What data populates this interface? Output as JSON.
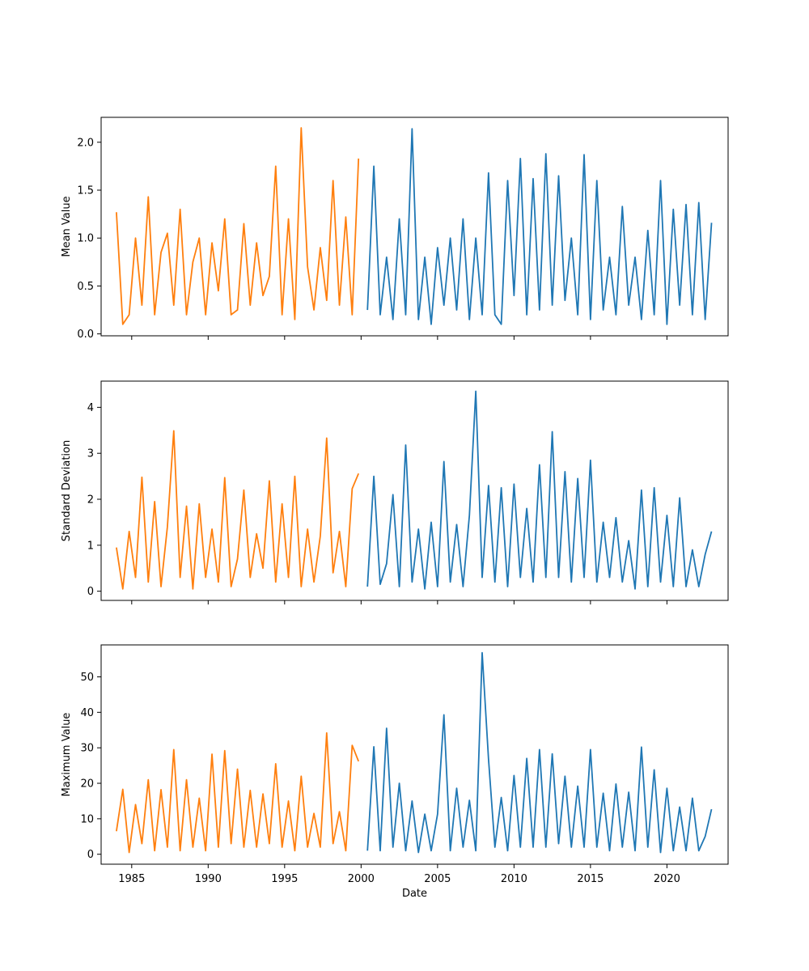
{
  "chart_data": {
    "type": "line",
    "shared_x": {
      "label": "Date",
      "ticks": [
        "1985",
        "1990",
        "1995",
        "2000",
        "2005",
        "2010",
        "2015",
        "2020"
      ],
      "range": [
        "1983",
        "2024"
      ]
    },
    "colors": {
      "series_before_2000": "#ff7f0e",
      "series_from_2000": "#1f77b4"
    },
    "panels": [
      {
        "ylabel": "Mean Value",
        "ylim": [
          -0.02,
          2.26
        ],
        "yticks": [
          "0.0",
          "0.5",
          "1.0",
          "1.5",
          "2.0"
        ],
        "series": [
          {
            "x": [
              "1984-01",
              "1984-06",
              "1984-11",
              "1985-04",
              "1985-09",
              "1986-02",
              "1986-07",
              "1986-12",
              "1987-05",
              "1987-10",
              "1988-03",
              "1988-08",
              "1989-01",
              "1989-06",
              "1989-11",
              "1990-04",
              "1990-09",
              "1991-02",
              "1991-07",
              "1991-12",
              "1992-05",
              "1992-10",
              "1993-03",
              "1993-08",
              "1994-01",
              "1994-06",
              "1994-11",
              "1995-04",
              "1995-09",
              "1996-02",
              "1996-07",
              "1996-12",
              "1997-05",
              "1997-10",
              "1998-03",
              "1998-08",
              "1999-01",
              "1999-06",
              "1999-11"
            ],
            "y": [
              1.27,
              0.1,
              0.2,
              1.0,
              0.3,
              1.43,
              0.2,
              0.85,
              1.05,
              0.3,
              1.3,
              0.2,
              0.75,
              1.0,
              0.2,
              0.95,
              0.45,
              1.2,
              0.2,
              0.25,
              1.15,
              0.3,
              0.95,
              0.4,
              0.6,
              1.75,
              0.2,
              1.2,
              0.15,
              2.15,
              0.7,
              0.25,
              0.9,
              0.35,
              1.6,
              0.3,
              1.22,
              0.2,
              1.83
            ]
          },
          {
            "x": [
              "2000-06",
              "2000-11",
              "2001-04",
              "2001-09",
              "2002-02",
              "2002-07",
              "2002-12",
              "2003-05",
              "2003-10",
              "2004-03",
              "2004-08",
              "2005-01",
              "2005-06",
              "2005-11",
              "2006-04",
              "2006-09",
              "2007-02",
              "2007-07",
              "2007-12",
              "2008-05",
              "2008-10",
              "2009-03",
              "2009-08",
              "2010-01",
              "2010-06",
              "2010-11",
              "2011-04",
              "2011-09",
              "2012-02",
              "2012-07",
              "2012-12",
              "2013-05",
              "2013-10",
              "2014-03",
              "2014-08",
              "2015-01",
              "2015-06",
              "2015-11",
              "2016-04",
              "2016-09",
              "2017-02",
              "2017-07",
              "2017-12",
              "2018-05",
              "2018-10",
              "2019-03",
              "2019-08",
              "2020-01",
              "2020-06",
              "2020-11",
              "2021-04",
              "2021-09",
              "2022-02",
              "2022-07",
              "2022-12"
            ],
            "y": [
              0.25,
              1.75,
              0.2,
              0.8,
              0.15,
              1.2,
              0.2,
              2.14,
              0.15,
              0.8,
              0.1,
              0.9,
              0.3,
              1.0,
              0.25,
              1.2,
              0.15,
              1.0,
              0.2,
              1.68,
              0.2,
              0.1,
              1.6,
              0.4,
              1.83,
              0.2,
              1.62,
              0.25,
              1.88,
              0.3,
              1.65,
              0.35,
              1.0,
              0.2,
              1.87,
              0.15,
              1.6,
              0.25,
              0.8,
              0.2,
              1.33,
              0.3,
              0.8,
              0.15,
              1.08,
              0.2,
              1.6,
              0.1,
              1.3,
              0.3,
              1.35,
              0.2,
              1.37,
              0.15,
              1.16
            ]
          }
        ]
      },
      {
        "ylabel": "Standard Deviation",
        "ylim": [
          -0.2,
          4.57
        ],
        "yticks": [
          "0",
          "1",
          "2",
          "3",
          "4"
        ],
        "series": [
          {
            "x": [
              "1984-01",
              "1984-06",
              "1984-11",
              "1985-04",
              "1985-09",
              "1986-02",
              "1986-07",
              "1986-12",
              "1987-05",
              "1987-10",
              "1988-03",
              "1988-08",
              "1989-01",
              "1989-06",
              "1989-11",
              "1990-04",
              "1990-09",
              "1991-02",
              "1991-07",
              "1991-12",
              "1992-05",
              "1992-10",
              "1993-03",
              "1993-08",
              "1994-01",
              "1994-06",
              "1994-11",
              "1995-04",
              "1995-09",
              "1996-02",
              "1996-07",
              "1996-12",
              "1997-05",
              "1997-10",
              "1998-03",
              "1998-08",
              "1999-01",
              "1999-06",
              "1999-11"
            ],
            "y": [
              0.95,
              0.05,
              1.3,
              0.3,
              2.48,
              0.2,
              1.95,
              0.1,
              1.4,
              3.49,
              0.3,
              1.85,
              0.05,
              1.9,
              0.3,
              1.35,
              0.2,
              2.47,
              0.1,
              0.7,
              2.2,
              0.3,
              1.25,
              0.5,
              2.4,
              0.2,
              1.9,
              0.3,
              2.5,
              0.1,
              1.35,
              0.2,
              1.2,
              3.33,
              0.4,
              1.3,
              0.1,
              2.23,
              2.56
            ]
          },
          {
            "x": [
              "2000-06",
              "2000-11",
              "2001-04",
              "2001-09",
              "2002-02",
              "2002-07",
              "2002-12",
              "2003-05",
              "2003-10",
              "2004-03",
              "2004-08",
              "2005-01",
              "2005-06",
              "2005-11",
              "2006-04",
              "2006-09",
              "2007-02",
              "2007-07",
              "2007-12",
              "2008-05",
              "2008-10",
              "2009-03",
              "2009-08",
              "2010-01",
              "2010-06",
              "2010-11",
              "2011-04",
              "2011-09",
              "2012-02",
              "2012-07",
              "2012-12",
              "2013-05",
              "2013-10",
              "2014-03",
              "2014-08",
              "2015-01",
              "2015-06",
              "2015-11",
              "2016-04",
              "2016-09",
              "2017-02",
              "2017-07",
              "2017-12",
              "2018-05",
              "2018-10",
              "2019-03",
              "2019-08",
              "2020-01",
              "2020-06",
              "2020-11",
              "2021-04",
              "2021-09",
              "2022-02",
              "2022-07",
              "2022-12"
            ],
            "y": [
              0.1,
              2.5,
              0.15,
              0.6,
              2.1,
              0.1,
              3.18,
              0.2,
              1.35,
              0.05,
              1.5,
              0.1,
              2.82,
              0.2,
              1.45,
              0.1,
              1.65,
              4.35,
              0.3,
              2.3,
              0.2,
              2.25,
              0.1,
              2.33,
              0.3,
              1.8,
              0.2,
              2.75,
              0.3,
              3.47,
              0.3,
              2.6,
              0.2,
              2.45,
              0.3,
              2.85,
              0.2,
              1.5,
              0.3,
              1.6,
              0.2,
              1.1,
              0.05,
              2.2,
              0.1,
              2.25,
              0.2,
              1.65,
              0.1,
              2.03,
              0.1,
              0.9,
              0.1,
              0.8,
              1.3
            ]
          }
        ]
      },
      {
        "ylabel": "Maximum Value",
        "ylim": [
          -2.8,
          59.0
        ],
        "yticks": [
          "0",
          "10",
          "20",
          "30",
          "40",
          "50"
        ],
        "series": [
          {
            "x": [
              "1984-01",
              "1984-06",
              "1984-11",
              "1985-04",
              "1985-09",
              "1986-02",
              "1986-07",
              "1986-12",
              "1987-05",
              "1987-10",
              "1988-03",
              "1988-08",
              "1989-01",
              "1989-06",
              "1989-11",
              "1990-04",
              "1990-09",
              "1991-02",
              "1991-07",
              "1991-12",
              "1992-05",
              "1992-10",
              "1993-03",
              "1993-08",
              "1994-01",
              "1994-06",
              "1994-11",
              "1995-04",
              "1995-09",
              "1996-02",
              "1996-07",
              "1996-12",
              "1997-05",
              "1997-10",
              "1998-03",
              "1998-08",
              "1999-01",
              "1999-06",
              "1999-11"
            ],
            "y": [
              6.5,
              18.3,
              0.5,
              14,
              3,
              21,
              1,
              18.2,
              2,
              29.5,
              1,
              21,
              2,
              15.8,
              1,
              28.2,
              2,
              29.2,
              3,
              24,
              2,
              18,
              2,
              17,
              3,
              25.5,
              2,
              15,
              1,
              22,
              2,
              11.5,
              2,
              34.2,
              3,
              12,
              1,
              30.7,
              26.2
            ]
          },
          {
            "x": [
              "2000-06",
              "2000-11",
              "2001-04",
              "2001-09",
              "2002-02",
              "2002-07",
              "2002-12",
              "2003-05",
              "2003-10",
              "2004-03",
              "2004-08",
              "2005-01",
              "2005-06",
              "2005-11",
              "2006-04",
              "2006-09",
              "2007-02",
              "2007-07",
              "2007-12",
              "2008-05",
              "2008-10",
              "2009-03",
              "2009-08",
              "2010-01",
              "2010-06",
              "2010-11",
              "2011-04",
              "2011-09",
              "2012-02",
              "2012-07",
              "2012-12",
              "2013-05",
              "2013-10",
              "2014-03",
              "2014-08",
              "2015-01",
              "2015-06",
              "2015-11",
              "2016-04",
              "2016-09",
              "2017-02",
              "2017-07",
              "2017-12",
              "2018-05",
              "2018-10",
              "2019-03",
              "2019-08",
              "2020-01",
              "2020-06",
              "2020-11",
              "2021-04",
              "2021-09",
              "2022-02",
              "2022-07",
              "2022-12"
            ],
            "y": [
              1,
              30.3,
              1,
              35.5,
              2,
              20,
              1,
              15,
              0.5,
              11.3,
              1,
              11.3,
              39.3,
              1,
              18.6,
              2,
              15.2,
              1,
              56.8,
              26.8,
              2,
              16,
              1,
              22.2,
              2,
              27,
              2,
              29.5,
              2,
              28.3,
              3,
              22,
              2,
              19.2,
              2,
              29.5,
              2,
              17.2,
              1,
              19.8,
              2,
              17.5,
              1,
              30.2,
              2,
              23.8,
              0.5,
              18.6,
              1,
              13.3,
              1,
              15.8,
              1,
              5,
              12.7
            ]
          }
        ]
      }
    ]
  }
}
